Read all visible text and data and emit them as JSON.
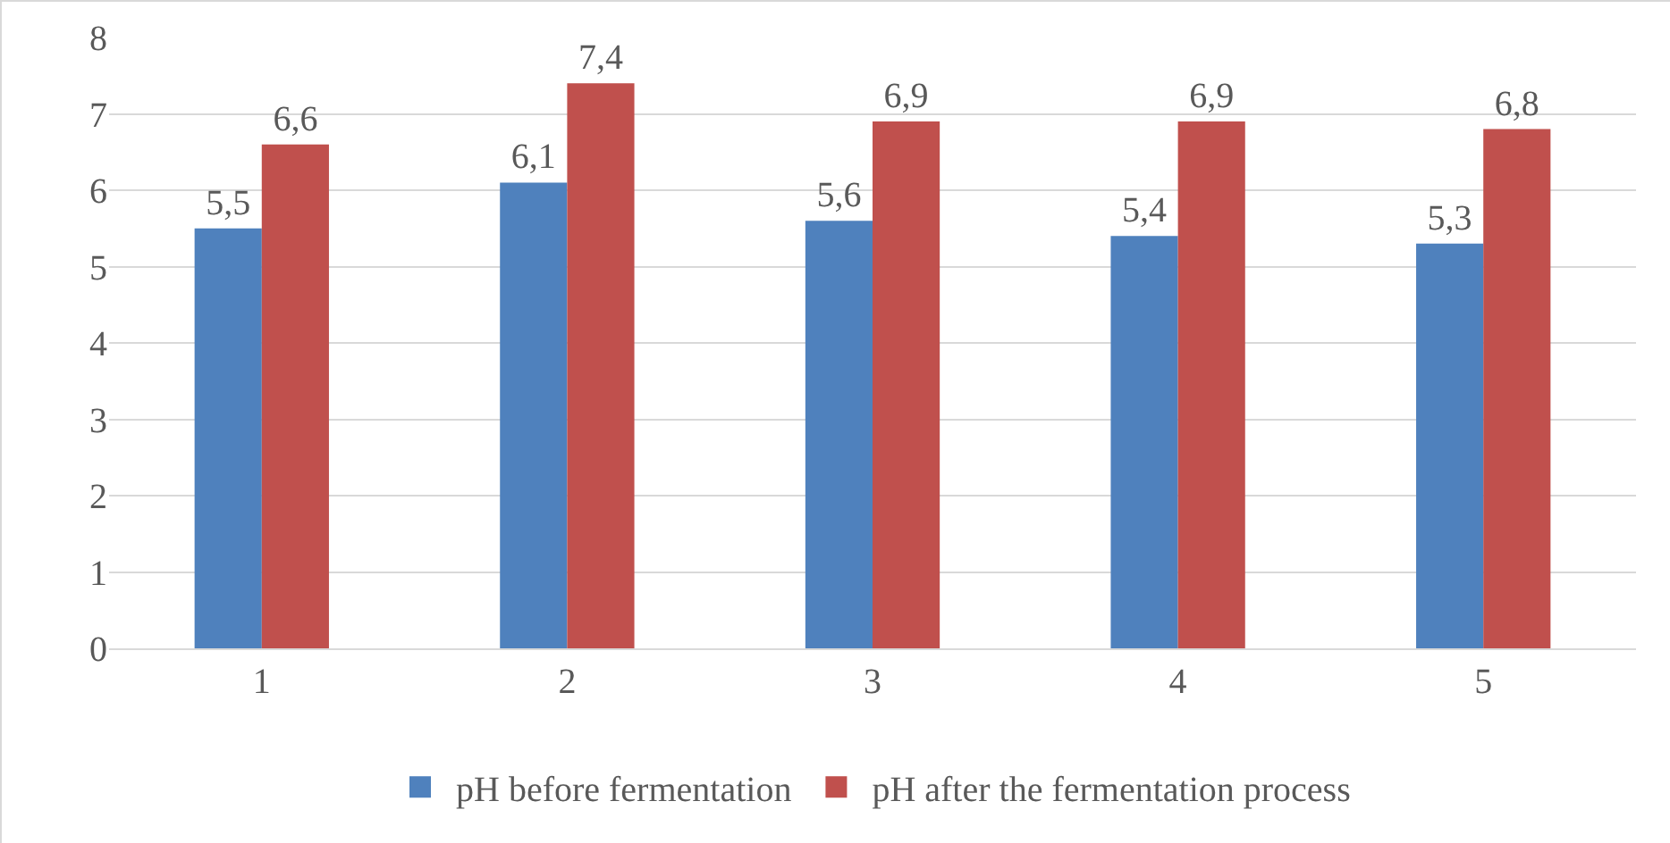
{
  "chart_data": {
    "type": "bar",
    "categories": [
      "1",
      "2",
      "3",
      "4",
      "5"
    ],
    "series": [
      {
        "name": "pH before fermentation",
        "color": "#4f81bd",
        "values": [
          5.5,
          6.1,
          5.6,
          5.4,
          5.3
        ],
        "value_labels": [
          "5,5",
          "6,1",
          "5,6",
          "5,4",
          "5,3"
        ]
      },
      {
        "name": "pH after the fermentation process",
        "color": "#c0504d",
        "values": [
          6.6,
          7.4,
          6.9,
          6.9,
          6.8
        ],
        "value_labels": [
          "6,6",
          "7,4",
          "6,9",
          "6,9",
          "6,8"
        ]
      }
    ],
    "ylim": [
      0,
      8
    ],
    "yticks": [
      0,
      1,
      2,
      3,
      4,
      5,
      6,
      7,
      8
    ],
    "grid": "y",
    "legend": "bottom"
  }
}
